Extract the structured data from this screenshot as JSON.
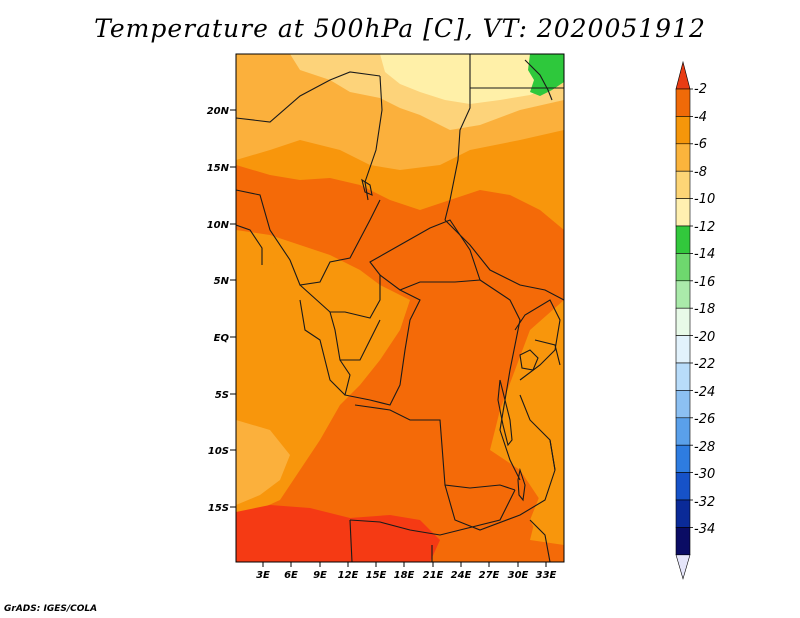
{
  "title": "Temperature at 500hPa [C], VT: 2020051912",
  "credit": "GrADS: IGES/COLA",
  "y_ticks": [
    "20N",
    "15N",
    "10N",
    "5N",
    "EQ",
    "5S",
    "10S",
    "15S"
  ],
  "x_ticks": [
    "3E",
    "6E",
    "9E",
    "12E",
    "15E",
    "18E",
    "21E",
    "24E",
    "27E",
    "30E",
    "33E"
  ],
  "colorbar": {
    "labels": [
      "-2",
      "-4",
      "-6",
      "-8",
      "-10",
      "-12",
      "-14",
      "-16",
      "-18",
      "-20",
      "-22",
      "-24",
      "-26",
      "-28",
      "-30",
      "-32",
      "-34"
    ],
    "colors": [
      "#e83c14",
      "#f06a08",
      "#f5960a",
      "#fbb43c",
      "#fdd576",
      "#fff0b0",
      "#32c83c",
      "#6ed86e",
      "#aaeaaa",
      "#e8fae8",
      "#e2f2fc",
      "#b8dcfa",
      "#8cc0f2",
      "#5aa0ea",
      "#2e7ce0",
      "#1652c8",
      "#0a2a98",
      "#0a0c64",
      "#e6e6fa"
    ]
  },
  "field_colors": {
    "red_south": "#f53a14",
    "dark_orange": "#f46a08",
    "orange": "#f8960c",
    "light_orange": "#fbb03c",
    "yellow": "#fdd37a",
    "pale_yellow": "#fff0a8",
    "green": "#2ec83c",
    "border": "#1a1a1a"
  }
}
